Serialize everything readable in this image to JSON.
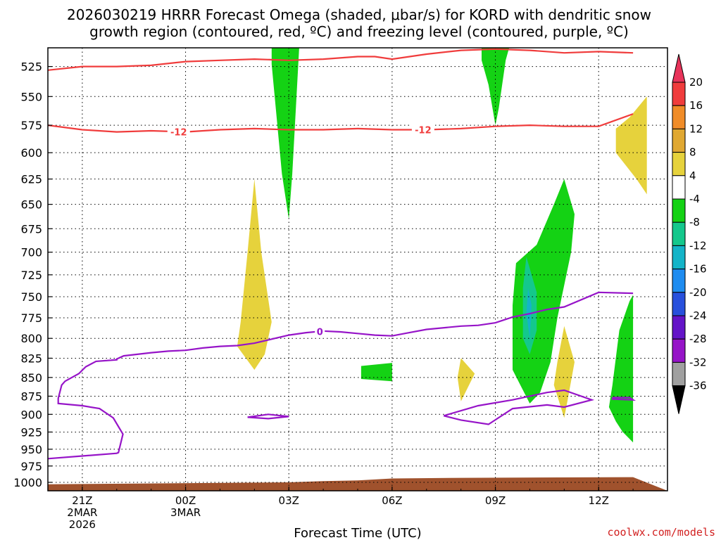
{
  "title": {
    "line1": "2026030219 HRRR Forecast Omega (shaded, μbar/s) for KORD with dendritic snow",
    "line2": "growth region (contoured, red, ºC) and freezing level (contoured, purple, ºC)"
  },
  "credit": "coolwx.com/models",
  "chart_data": {
    "type": "contour",
    "xlabel": "Forecast Time (UTC)",
    "ylabel": "",
    "x_range_hours": [
      -4,
      14
    ],
    "y_range_hPa": [
      1000,
      510
    ],
    "y_log_scale": true,
    "grid": true,
    "y_ticks": [
      525,
      550,
      575,
      600,
      625,
      650,
      675,
      700,
      725,
      750,
      775,
      800,
      825,
      850,
      875,
      900,
      925,
      950,
      975,
      1000
    ],
    "x_ticks": [
      {
        "h": -3,
        "lines": [
          "21Z",
          "2MAR",
          "2026"
        ]
      },
      {
        "h": 0,
        "lines": [
          "00Z",
          "3MAR"
        ]
      },
      {
        "h": 3,
        "lines": [
          "03Z"
        ]
      },
      {
        "h": 6,
        "lines": [
          "06Z"
        ]
      },
      {
        "h": 9,
        "lines": [
          "09Z"
        ]
      },
      {
        "h": 12,
        "lines": [
          "12Z"
        ]
      }
    ],
    "colorbar": {
      "levels": [
        20,
        16,
        12,
        8,
        4,
        -4,
        -8,
        -12,
        -16,
        -20,
        -24,
        -28,
        -32,
        -36
      ],
      "colors": [
        "#e8335a",
        "#f03c3c",
        "#f08c28",
        "#e0a832",
        "#e6d23c",
        "#ffffff",
        "#14d214",
        "#14c88c",
        "#14b4c8",
        "#1e8cf0",
        "#2850dc",
        "#6414c8",
        "#9614c8",
        "#a0a0a0",
        "#000000"
      ]
    },
    "red_isotherms": [
      {
        "label": "",
        "points": [
          [
            -4,
            528
          ],
          [
            -3,
            525
          ],
          [
            -2,
            525
          ],
          [
            -1,
            524
          ],
          [
            0,
            521
          ],
          [
            1,
            520
          ],
          [
            2,
            519
          ],
          [
            3,
            520
          ],
          [
            4,
            519
          ],
          [
            5,
            517
          ],
          [
            5.5,
            517
          ],
          [
            6,
            519
          ],
          [
            7,
            515
          ],
          [
            8,
            512
          ],
          [
            9,
            511
          ],
          [
            10,
            512
          ],
          [
            11,
            514
          ],
          [
            12,
            513
          ],
          [
            13,
            514
          ]
        ]
      },
      {
        "label": "-12",
        "label_h": [
          -0.2,
          6.9
        ],
        "points": [
          [
            -4,
            575
          ],
          [
            -3,
            579
          ],
          [
            -2,
            581
          ],
          [
            -1,
            580
          ],
          [
            0,
            581
          ],
          [
            1,
            579
          ],
          [
            2,
            578
          ],
          [
            3,
            579
          ],
          [
            4,
            579
          ],
          [
            5,
            578
          ],
          [
            6,
            579
          ],
          [
            7,
            579
          ],
          [
            8,
            578
          ],
          [
            9,
            576
          ],
          [
            10,
            575
          ],
          [
            11,
            576
          ],
          [
            12,
            576
          ],
          [
            13,
            565
          ]
        ]
      }
    ],
    "freezing_level": {
      "label": "0",
      "label_h": 3.9,
      "main_contour": [
        [
          -4,
          964
        ],
        [
          -3,
          960
        ],
        [
          -2,
          956
        ],
        [
          -1.95,
          955
        ],
        [
          -1.82,
          928
        ],
        [
          -2.1,
          905
        ],
        [
          -2.5,
          892
        ],
        [
          -3,
          888
        ],
        [
          -3.7,
          885
        ],
        [
          -3.7,
          878
        ],
        [
          -3.6,
          860
        ],
        [
          -3.5,
          855
        ],
        [
          -3.1,
          845
        ],
        [
          -2.9,
          836
        ],
        [
          -2.6,
          829
        ],
        [
          -2,
          827
        ],
        [
          -2,
          826
        ],
        [
          -1.8,
          822
        ],
        [
          -1.4,
          820
        ],
        [
          -1,
          818
        ],
        [
          -0.5,
          816
        ],
        [
          0,
          815
        ],
        [
          0.5,
          812
        ],
        [
          1,
          810
        ],
        [
          1.5,
          809
        ],
        [
          2,
          806
        ],
        [
          2.5,
          801
        ],
        [
          3,
          796
        ],
        [
          3.5,
          793
        ],
        [
          4,
          791
        ],
        [
          4.5,
          792
        ],
        [
          5,
          794
        ],
        [
          5.5,
          796
        ],
        [
          6,
          797
        ],
        [
          6.5,
          793
        ],
        [
          7,
          789
        ],
        [
          8,
          785
        ],
        [
          8.5,
          784
        ],
        [
          9,
          781
        ],
        [
          9.5,
          774
        ],
        [
          10,
          770
        ],
        [
          10.5,
          765
        ],
        [
          11,
          762
        ],
        [
          12,
          745
        ],
        [
          13,
          746
        ]
      ],
      "closed_contours": [
        [
          [
            1.8,
            904
          ],
          [
            2.4,
            900
          ],
          [
            3,
            903
          ],
          [
            2.4,
            906
          ],
          [
            1.8,
            904
          ]
        ],
        [
          [
            7.5,
            902
          ],
          [
            8.5,
            888
          ],
          [
            9.5,
            880
          ],
          [
            10.5,
            870
          ],
          [
            11,
            867
          ],
          [
            11.8,
            880
          ],
          [
            11,
            890
          ],
          [
            10.5,
            887
          ],
          [
            9.5,
            892
          ],
          [
            8.8,
            914
          ],
          [
            8,
            908
          ],
          [
            7.5,
            902
          ]
        ],
        [
          [
            12.4,
            877
          ],
          [
            12.9,
            877
          ],
          [
            13,
            880
          ],
          [
            12.4,
            879
          ],
          [
            12.4,
            877
          ]
        ]
      ]
    },
    "omega_regions": [
      {
        "value": -4,
        "color": "#14d214",
        "points": [
          [
            2.5,
            510
          ],
          [
            3.3,
            510
          ],
          [
            3.1,
            620
          ],
          [
            3,
            665
          ],
          [
            2.8,
            620
          ],
          [
            2.5,
            523
          ]
        ]
      },
      {
        "value": -4,
        "color": "#14d214",
        "points": [
          [
            8.6,
            510
          ],
          [
            9.4,
            510
          ],
          [
            9.3,
            520
          ],
          [
            9.1,
            560
          ],
          [
            9,
            575
          ],
          [
            8.8,
            540
          ],
          [
            8.6,
            520
          ]
        ]
      },
      {
        "value": 4,
        "color": "#e6d23c",
        "points": [
          [
            13.4,
            550
          ],
          [
            13.4,
            640
          ],
          [
            13.1,
            625
          ],
          [
            12.5,
            600
          ],
          [
            12.5,
            578
          ],
          [
            12.9,
            568
          ]
        ]
      },
      {
        "value": 4,
        "color": "#e6d23c",
        "points": [
          [
            2,
            625
          ],
          [
            2.2,
            700
          ],
          [
            2.5,
            780
          ],
          [
            2.3,
            820
          ],
          [
            2,
            840
          ],
          [
            1.5,
            810
          ],
          [
            1.6,
            780
          ],
          [
            1.8,
            700
          ]
        ]
      },
      {
        "value": -4,
        "color": "#14d214",
        "points": [
          [
            5.1,
            835
          ],
          [
            6,
            831
          ],
          [
            6,
            855
          ],
          [
            5.1,
            852
          ]
        ]
      },
      {
        "value": 4,
        "color": "#e6d23c",
        "points": [
          [
            8,
            825
          ],
          [
            8.4,
            845
          ],
          [
            8,
            882
          ],
          [
            7.9,
            850
          ]
        ]
      },
      {
        "value": -4,
        "color": "#14d214",
        "points": [
          [
            11,
            625
          ],
          [
            11.3,
            660
          ],
          [
            11.2,
            700
          ],
          [
            10.8,
            775
          ],
          [
            10.6,
            830
          ],
          [
            10.3,
            870
          ],
          [
            10,
            885
          ],
          [
            9.5,
            840
          ],
          [
            9.5,
            760
          ],
          [
            9.6,
            712
          ],
          [
            10.2,
            692
          ],
          [
            10.7,
            650
          ]
        ]
      },
      {
        "value": -8,
        "color": "#14c88c",
        "points": [
          [
            9.9,
            705
          ],
          [
            10.2,
            745
          ],
          [
            10.2,
            790
          ],
          [
            10,
            820
          ],
          [
            9.8,
            800
          ],
          [
            9.8,
            740
          ]
        ]
      },
      {
        "value": -12,
        "color": "#14b4c8",
        "points": [
          [
            9.95,
            740
          ],
          [
            10.05,
            760
          ],
          [
            10,
            800
          ],
          [
            9.9,
            770
          ]
        ]
      },
      {
        "value": 4,
        "color": "#e6d23c",
        "points": [
          [
            11,
            785
          ],
          [
            11.3,
            830
          ],
          [
            11.1,
            880
          ],
          [
            11,
            905
          ],
          [
            10.7,
            860
          ],
          [
            10.8,
            830
          ]
        ]
      },
      {
        "value": -4,
        "color": "#14d214",
        "points": [
          [
            13,
            748
          ],
          [
            13,
            940
          ],
          [
            12.7,
            925
          ],
          [
            12.5,
            910
          ],
          [
            12.3,
            890
          ],
          [
            12.4,
            860
          ],
          [
            12.6,
            790
          ],
          [
            12.9,
            755
          ]
        ]
      }
    ],
    "surface": {
      "color": "#a0522d",
      "points": [
        [
          -4,
          1003
        ],
        [
          3,
          1000
        ],
        [
          4,
          998
        ],
        [
          5,
          997
        ],
        [
          6,
          994
        ],
        [
          8,
          993
        ],
        [
          13,
          992
        ]
      ]
    }
  }
}
